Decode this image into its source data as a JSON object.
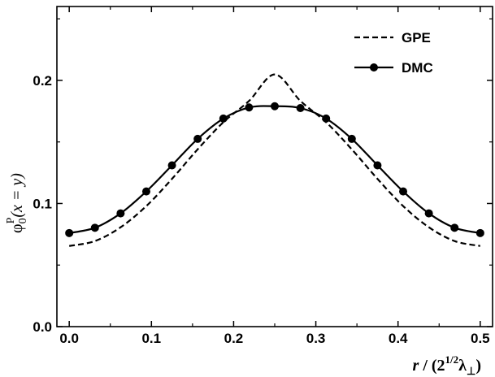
{
  "chart_data": {
    "type": "line",
    "xlabel": "r / (2^{1/2}λ⊥)",
    "xlabel_parts": {
      "var": "r",
      "sep": " / (2",
      "sup": "1/2",
      "sym": "λ",
      "sub": "⊥",
      "close": ")"
    },
    "ylabel": "φ0P(x = y)",
    "ylabel_parts": {
      "phi": "φ",
      "sub": "0",
      "sup": "P",
      "rest": "(x = y)"
    },
    "xlim": [
      -0.015,
      0.515
    ],
    "ylim": [
      0.0,
      0.26
    ],
    "xticks": [
      0.0,
      0.1,
      0.2,
      0.3,
      0.4,
      0.5
    ],
    "xtick_labels": [
      "0.0",
      "0.1",
      "0.2",
      "0.3",
      "0.4",
      "0.5"
    ],
    "yticks": [
      0.0,
      0.1,
      0.2
    ],
    "ytick_labels": [
      "0.0",
      "0.1",
      "0.2"
    ],
    "legend_position": "top-right",
    "grid": false,
    "series": [
      {
        "name": "GPE",
        "style": "dashed",
        "markers": false,
        "x": [
          0.0,
          0.03125,
          0.0625,
          0.09375,
          0.125,
          0.15625,
          0.1875,
          0.21875,
          0.25,
          0.28125,
          0.3125,
          0.34375,
          0.375,
          0.40625,
          0.4375,
          0.46875,
          0.5
        ],
        "y": [
          0.0655,
          0.0695,
          0.0807,
          0.0979,
          0.12,
          0.144,
          0.166,
          0.1833,
          0.2048,
          0.1833,
          0.166,
          0.144,
          0.12,
          0.0979,
          0.0807,
          0.0695,
          0.0655
        ]
      },
      {
        "name": "DMC",
        "style": "solid",
        "markers": true,
        "x": [
          0.0,
          0.03125,
          0.0625,
          0.09375,
          0.125,
          0.15625,
          0.1875,
          0.21875,
          0.25,
          0.28125,
          0.3125,
          0.34375,
          0.375,
          0.40625,
          0.4375,
          0.46875,
          0.5
        ],
        "y": [
          0.076,
          0.0803,
          0.092,
          0.1098,
          0.131,
          0.1525,
          0.169,
          0.178,
          0.179,
          0.1775,
          0.169,
          0.1525,
          0.131,
          0.1098,
          0.092,
          0.0803,
          0.076
        ]
      }
    ]
  }
}
